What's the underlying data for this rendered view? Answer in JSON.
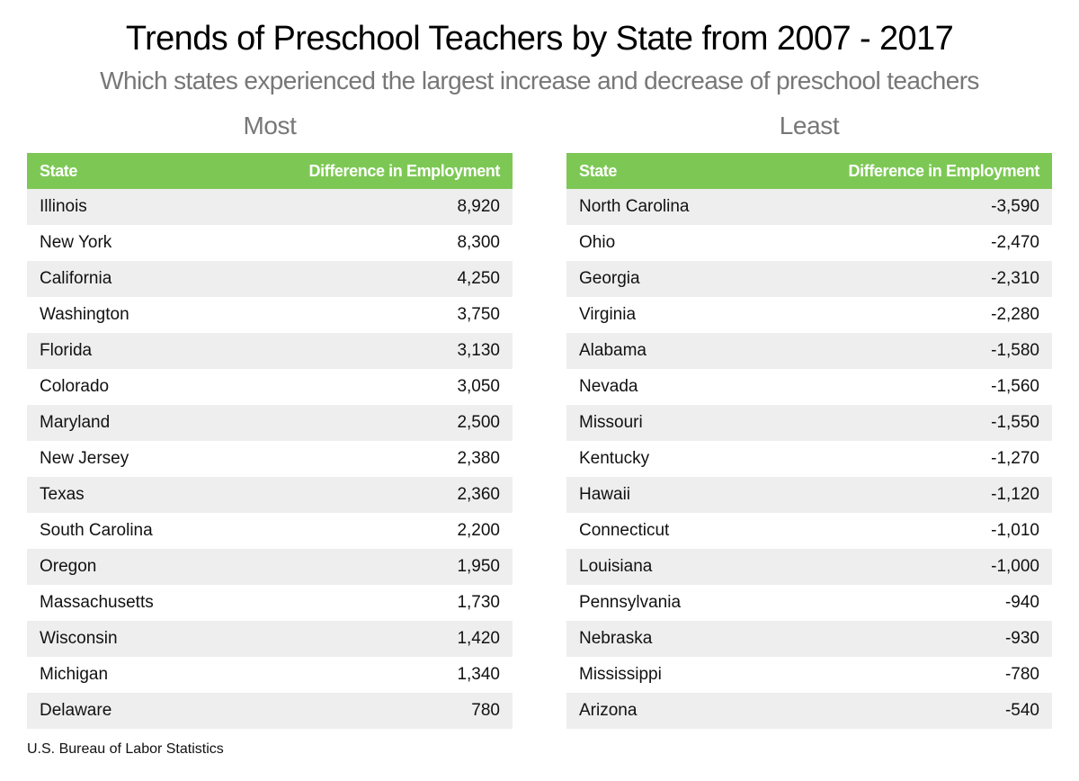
{
  "header": {
    "title": "Trends of Preschool Teachers by State from 2007 - 2017",
    "subtitle": "Which states experienced the largest increase and decrease of preschool teachers"
  },
  "colors": {
    "header_bg": "#7dc855",
    "stripe": "#eeeeee",
    "subtitle": "#777777"
  },
  "most": {
    "title": "Most",
    "columns": [
      "State",
      "Difference in Employment"
    ],
    "rows": [
      {
        "state": "Illinois",
        "diff": "8,920"
      },
      {
        "state": "New York",
        "diff": "8,300"
      },
      {
        "state": "California",
        "diff": "4,250"
      },
      {
        "state": "Washington",
        "diff": "3,750"
      },
      {
        "state": "Florida",
        "diff": "3,130"
      },
      {
        "state": "Colorado",
        "diff": "3,050"
      },
      {
        "state": "Maryland",
        "diff": "2,500"
      },
      {
        "state": "New Jersey",
        "diff": "2,380"
      },
      {
        "state": "Texas",
        "diff": "2,360"
      },
      {
        "state": "South Carolina",
        "diff": "2,200"
      },
      {
        "state": "Oregon",
        "diff": "1,950"
      },
      {
        "state": "Massachusetts",
        "diff": "1,730"
      },
      {
        "state": "Wisconsin",
        "diff": "1,420"
      },
      {
        "state": "Michigan",
        "diff": "1,340"
      },
      {
        "state": "Delaware",
        "diff": "780"
      }
    ]
  },
  "least": {
    "title": "Least",
    "columns": [
      "State",
      "Difference in Employment"
    ],
    "rows": [
      {
        "state": "North Carolina",
        "diff": "-3,590"
      },
      {
        "state": "Ohio",
        "diff": "-2,470"
      },
      {
        "state": "Georgia",
        "diff": "-2,310"
      },
      {
        "state": "Virginia",
        "diff": "-2,280"
      },
      {
        "state": "Alabama",
        "diff": "-1,580"
      },
      {
        "state": "Nevada",
        "diff": "-1,560"
      },
      {
        "state": "Missouri",
        "diff": "-1,550"
      },
      {
        "state": "Kentucky",
        "diff": "-1,270"
      },
      {
        "state": "Hawaii",
        "diff": "-1,120"
      },
      {
        "state": "Connecticut",
        "diff": "-1,010"
      },
      {
        "state": "Louisiana",
        "diff": "-1,000"
      },
      {
        "state": "Pennsylvania",
        "diff": "-940"
      },
      {
        "state": "Nebraska",
        "diff": "-930"
      },
      {
        "state": "Mississippi",
        "diff": "-780"
      },
      {
        "state": "Arizona",
        "diff": "-540"
      }
    ]
  },
  "footer": {
    "source": "U.S. Bureau of Labor Statistics"
  },
  "chart_data": [
    {
      "type": "table",
      "title": "Most",
      "columns": [
        "State",
        "Difference in Employment"
      ],
      "categories": [
        "Illinois",
        "New York",
        "California",
        "Washington",
        "Florida",
        "Colorado",
        "Maryland",
        "New Jersey",
        "Texas",
        "South Carolina",
        "Oregon",
        "Massachusetts",
        "Wisconsin",
        "Michigan",
        "Delaware"
      ],
      "values": [
        8920,
        8300,
        4250,
        3750,
        3130,
        3050,
        2500,
        2380,
        2360,
        2200,
        1950,
        1730,
        1420,
        1340,
        780
      ]
    },
    {
      "type": "table",
      "title": "Least",
      "columns": [
        "State",
        "Difference in Employment"
      ],
      "categories": [
        "North Carolina",
        "Ohio",
        "Georgia",
        "Virginia",
        "Alabama",
        "Nevada",
        "Missouri",
        "Kentucky",
        "Hawaii",
        "Connecticut",
        "Louisiana",
        "Pennsylvania",
        "Nebraska",
        "Mississippi",
        "Arizona"
      ],
      "values": [
        -3590,
        -2470,
        -2310,
        -2280,
        -1580,
        -1560,
        -1550,
        -1270,
        -1120,
        -1010,
        -1000,
        -940,
        -930,
        -780,
        -540
      ]
    }
  ]
}
